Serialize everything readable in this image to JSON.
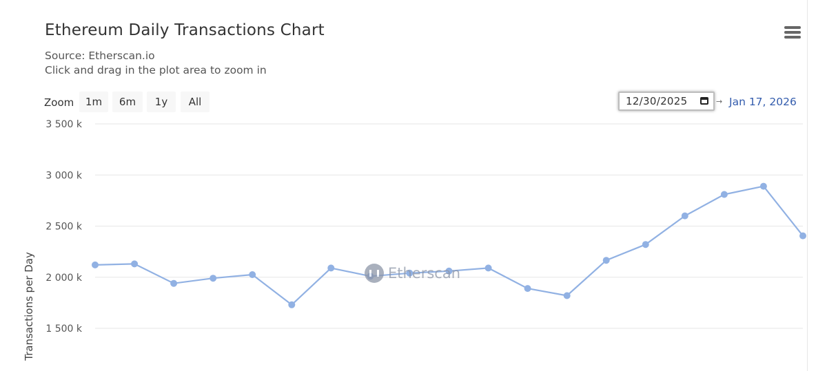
{
  "chart_data": {
    "type": "line",
    "title": "Ethereum Daily Transactions Chart",
    "subtitle": [
      "Source: Etherscan.io",
      "Click and drag in the plot area to zoom in"
    ],
    "xlabel": "",
    "ylabel": "Transactions per Day",
    "y_ticks": [
      "1 500 k",
      "2 000 k",
      "2 500 k",
      "3 000 k",
      "3 500 k"
    ],
    "y_tick_values": [
      1500000,
      2000000,
      2500000,
      3000000,
      3500000
    ],
    "ylim": [
      1500000,
      3500000
    ],
    "x": [
      "2025-12-30",
      "2025-12-31",
      "2026-01-01",
      "2026-01-02",
      "2026-01-03",
      "2026-01-04",
      "2026-01-05",
      "2026-01-06",
      "2026-01-07",
      "2026-01-08",
      "2026-01-09",
      "2026-01-10",
      "2026-01-11",
      "2026-01-12",
      "2026-01-13",
      "2026-01-14",
      "2026-01-15",
      "2026-01-16",
      "2026-01-17"
    ],
    "series": [
      {
        "values": [
          2120000,
          2130000,
          1940000,
          1990000,
          2025000,
          1730000,
          2090000,
          2010000,
          2040000,
          2060000,
          2090000,
          1890000,
          1820000,
          2165000,
          2320000,
          2600000,
          2810000,
          2890000,
          2405000
        ],
        "color": "#91b1e3"
      }
    ],
    "grid": true,
    "legend": "none"
  },
  "toolbar": {
    "zoom_label": "Zoom",
    "zoom_buttons": [
      "1m",
      "6m",
      "1y",
      "All"
    ],
    "range_from": "12/30/2025",
    "range_to": "Jan 17, 2026",
    "menu_icon": "hamburger-menu-icon"
  },
  "watermark": {
    "text": "Etherscan",
    "icon": "etherscan-logo-icon"
  },
  "colors": {
    "line": "#91b1e3",
    "grid": "#e6e6e6",
    "range_to": "#335cad"
  }
}
